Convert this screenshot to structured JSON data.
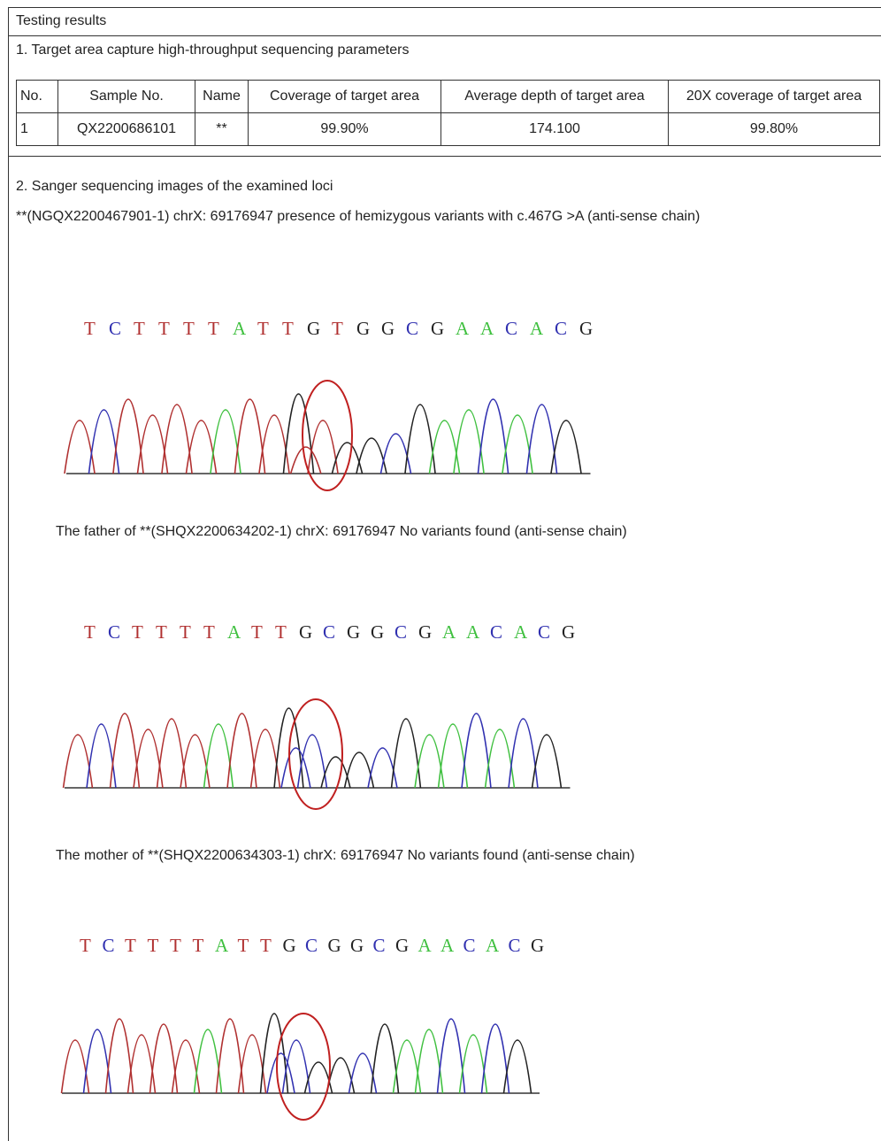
{
  "header": {
    "title": "Testing results"
  },
  "section1": {
    "title": "1. Target area capture high-throughput sequencing parameters"
  },
  "table": {
    "headers": [
      "No.",
      "Sample No.",
      "Name",
      "Coverage of target area",
      "Average depth of target area",
      "20X coverage of target area"
    ],
    "rows": [
      [
        "1",
        "QX2200686101",
        "**",
        "99.90%",
        "174.100",
        "99.80%"
      ]
    ]
  },
  "section2": {
    "title": "2. Sanger sequencing images of the examined loci"
  },
  "figures": [
    {
      "caption": "**(NGQX2200467901-1) chrX: 69176947 presence of hemizygous variants with c.467G >A (anti-sense chain)",
      "sequence": [
        "T",
        "C",
        "T",
        "T",
        "T",
        "T",
        "A",
        "T",
        "T",
        "G",
        "T",
        "G",
        "G",
        "C",
        "G",
        "A",
        "A",
        "C",
        "A",
        "C",
        "G"
      ]
    },
    {
      "caption": "The father of **(SHQX2200634202-1) chrX: 69176947 No variants found (anti-sense chain)",
      "sequence": [
        "T",
        "C",
        "T",
        "T",
        "T",
        "T",
        "A",
        "T",
        "T",
        "G",
        "C",
        "G",
        "G",
        "C",
        "G",
        "A",
        "A",
        "C",
        "A",
        "C",
        "G"
      ]
    },
    {
      "caption": "The mother of **(SHQX2200634303-1) chrX: 69176947 No variants found (anti-sense chain)",
      "sequence": [
        "T",
        "C",
        "T",
        "T",
        "T",
        "T",
        "A",
        "T",
        "T",
        "G",
        "C",
        "G",
        "G",
        "C",
        "G",
        "A",
        "A",
        "C",
        "A",
        "C",
        "G"
      ]
    }
  ]
}
